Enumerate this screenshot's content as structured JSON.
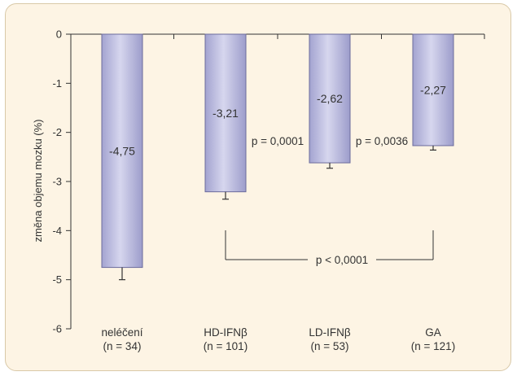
{
  "chart_data": {
    "type": "bar",
    "ylabel": "změna objemu mozku (%)",
    "ylim": [
      -6,
      0
    ],
    "yticks": [
      0,
      -1,
      -2,
      -3,
      -4,
      -5,
      -6
    ],
    "ytick_labels": [
      "0",
      "-1",
      "-2",
      "-3",
      "-4",
      "-5",
      "-6"
    ],
    "categories": [
      {
        "name": "neléčení",
        "n": "(n = 34)",
        "value": -4.75,
        "label": "-4,75",
        "error_low": -5.0
      },
      {
        "name": "HD-IFNβ",
        "n": "(n = 101)",
        "value": -3.21,
        "label": "-3,21",
        "error_low": -3.36
      },
      {
        "name": "LD-IFNβ",
        "n": "(n = 53)",
        "value": -2.62,
        "label": "-2,62",
        "error_low": -2.73
      },
      {
        "name": "GA",
        "n": "(n = 121)",
        "value": -2.27,
        "label": "-2,27",
        "error_low": -2.36
      }
    ],
    "annotations": [
      {
        "text": "p = 0,0001",
        "between": [
          "HD-IFNβ",
          "LD-IFNβ"
        ]
      },
      {
        "text": "p = 0,0036",
        "between": [
          "LD-IFNβ",
          "GA"
        ]
      },
      {
        "text": "p < 0,0001",
        "between": [
          "HD-IFNβ",
          "GA"
        ],
        "bracket": true
      }
    ],
    "colors": {
      "bar_fill": "#b3b3da",
      "bar_edge": "#6b6b9c",
      "background": "#fdf4e4",
      "border": "#d9c9a8",
      "axis": "#333333"
    }
  }
}
